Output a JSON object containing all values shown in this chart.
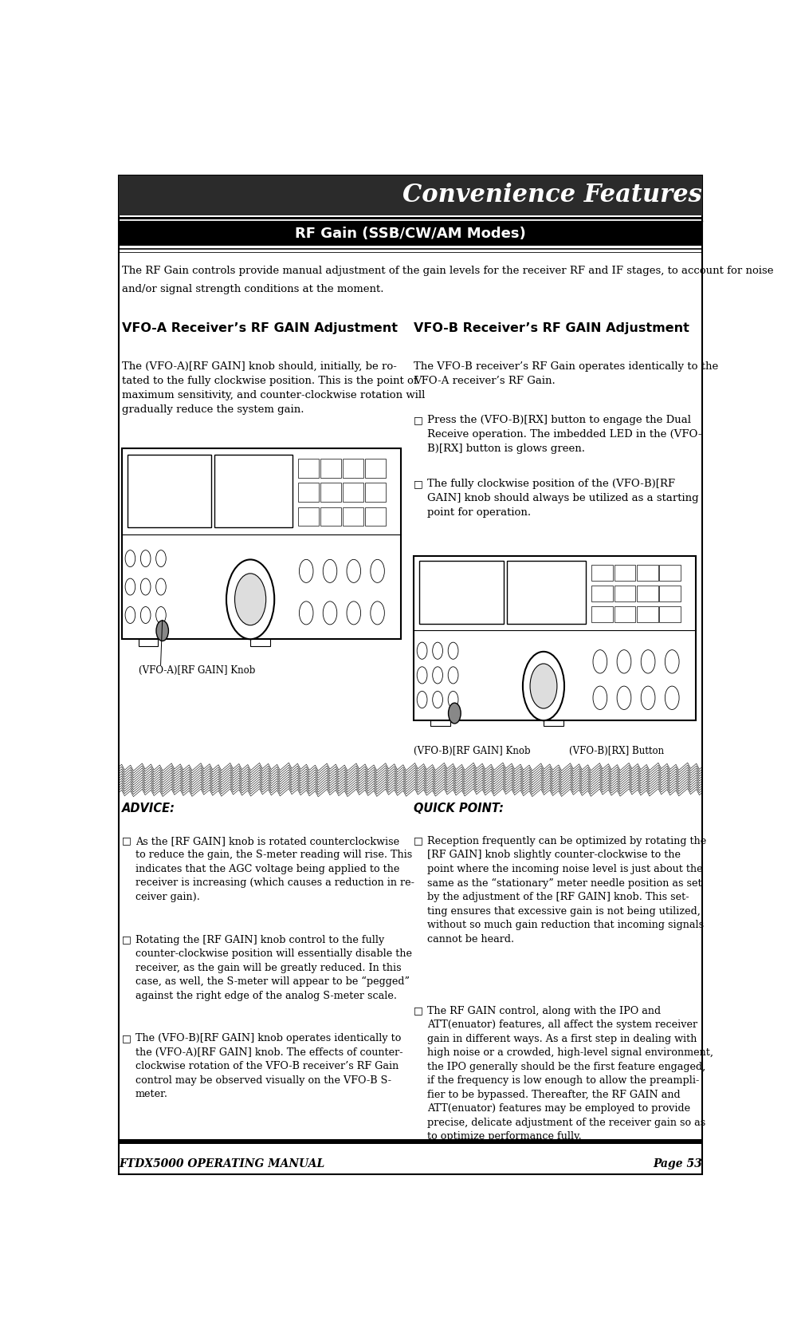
{
  "page_width": 10.05,
  "page_height": 16.76,
  "dpi": 100,
  "bg_color": "#ffffff",
  "header_bg": "#2b2b2b",
  "header_text_color": "#ffffff",
  "intro_text_line1": "The RF Gain controls provide manual adjustment of the gain levels for the receiver RF and IF stages, to account for noise",
  "intro_text_line2": "and/or signal strength conditions at the moment.",
  "col1_heading": "VFO-A Receiver’s RF GAIN Adjustment",
  "col1_body": "The (VFO-A)[RF GAIN] knob should, initially, be ro-\ntated to the fully clockwise position. This is the point of\nmaximum sensitivity, and counter-clockwise rotation will\ngradually reduce the system gain.",
  "col2_heading": "VFO-B Receiver’s RF GAIN Adjustment",
  "col2_body1": "The VFO-B receiver’s RF Gain operates identically to the\nVFO-A receiver’s RF Gain.",
  "col2_bullet1": "Press the (VFO-B)[RX] button to engage the Dual\nReceive operation. The imbedded LED in the (VFO-\nB)[RX] button is glows green.",
  "col2_bullet2": "The fully clockwise position of the (VFO-B)[RF\nGAIN] knob should always be utilized as a starting\npoint for operation.",
  "advice_heading": "ADVICE:",
  "advice_bullet1": "As the [RF GAIN] knob is rotated counterclockwise\nto reduce the gain, the S-meter reading will rise. This\nindicates that the AGC voltage being applied to the\nreceiver is increasing (which causes a reduction in re-\nceiver gain).",
  "advice_bullet2": "Rotating the [RF GAIN] knob control to the fully\ncounter-clockwise position will essentially disable the\nreceiver, as the gain will be greatly reduced. In this\ncase, as well, the S-meter will appear to be “pegged”\nagainst the right edge of the analog S-meter scale.",
  "advice_bullet3": "The (VFO-B)[RF GAIN] knob operates identically to\nthe (VFO-A)[RF GAIN] knob. The effects of counter-\nclockwise rotation of the VFO-B receiver’s RF Gain\ncontrol may be observed visually on the VFO-B S-\nmeter.",
  "qp_heading": "QUICK POINT:",
  "qp_bullet1": "Reception frequently can be optimized by rotating the\n[RF GAIN] knob slightly counter-clockwise to the\npoint where the incoming noise level is just about the\nsame as the “stationary” meter needle position as set\nby the adjustment of the [RF GAIN] knob. This set-\nting ensures that excessive gain is not being utilized,\nwithout so much gain reduction that incoming signals\ncannot be heard.",
  "qp_bullet2": "The RF GAIN control, along with the IPO and\nATT(enuator) features, all affect the system receiver\ngain in different ways. As a first step in dealing with\nhigh noise or a crowded, high-level signal environment,\nthe IPO generally should be the first feature engaged,\nif the frequency is low enough to allow the preampli-\nfier to be bypassed. Thereafter, the RF GAIN and\nATT(enuator) features may be employed to provide\nprecise, delicate adjustment of the receiver gain so as\nto optimize performance fully.",
  "footer_left": "FTDX5000 OPERATING MANUAL",
  "footer_right": "Page 53",
  "label_vfoa": "(VFO-A)[RF GAIN] Knob",
  "label_vfob_knob": "(VFO-B)[RF GAIN] Knob",
  "label_vfob_rx": "(VFO-B)[RX] Button",
  "border_color": "#000000",
  "text_color": "#000000"
}
